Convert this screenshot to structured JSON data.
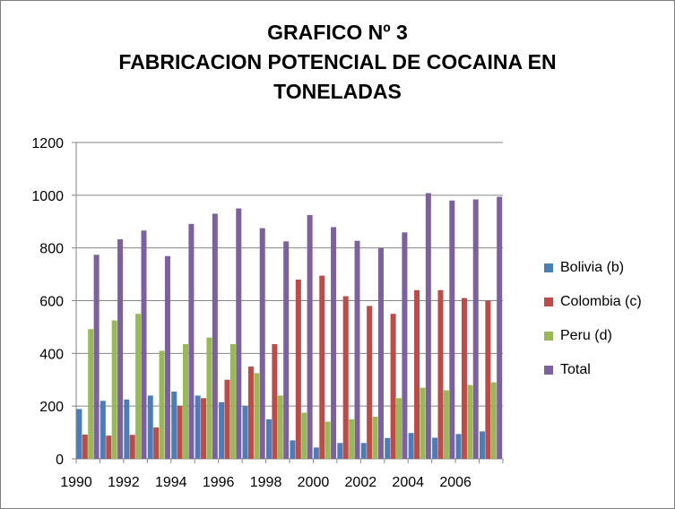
{
  "chart_data": {
    "type": "bar",
    "title_lines": [
      "GRAFICO Nº 3",
      "FABRICACION POTENCIAL DE COCAINA EN",
      "TONELADAS"
    ],
    "categories": [
      "1990",
      "1991",
      "1992",
      "1993",
      "1994",
      "1995",
      "1996",
      "1997",
      "1998",
      "1999",
      "2000",
      "2001",
      "2002",
      "2003",
      "2004",
      "2005",
      "2006",
      "2007"
    ],
    "x_tick_labels": [
      "1990",
      "1992",
      "1994",
      "1996",
      "1998",
      "2000",
      "2002",
      "2004",
      "2006"
    ],
    "ylim": [
      0,
      1200
    ],
    "y_ticks": [
      0,
      200,
      400,
      600,
      800,
      1000,
      1200
    ],
    "grid": true,
    "legend_position": "right",
    "series": [
      {
        "name": "Bolivia (b)",
        "color": "#4a7ebb",
        "values": [
          189,
          220,
          225,
          240,
          255,
          240,
          215,
          200,
          150,
          70,
          43,
          60,
          60,
          79,
          98,
          80,
          94,
          104
        ]
      },
      {
        "name": "Colombia (c)",
        "color": "#be4b48",
        "values": [
          92,
          88,
          91,
          119,
          201,
          230,
          300,
          350,
          435,
          680,
          695,
          617,
          580,
          550,
          640,
          640,
          610,
          600
        ]
      },
      {
        "name": "Peru (d)",
        "color": "#98b954",
        "values": [
          492,
          525,
          550,
          410,
          435,
          460,
          435,
          325,
          240,
          175,
          141,
          150,
          160,
          230,
          270,
          260,
          280,
          290
        ]
      },
      {
        "name": "Total",
        "color": "#7d60a0",
        "values": [
          774,
          833,
          866,
          769,
          891,
          930,
          950,
          875,
          825,
          925,
          879,
          827,
          800,
          859,
          1008,
          980,
          984,
          994
        ]
      }
    ]
  }
}
